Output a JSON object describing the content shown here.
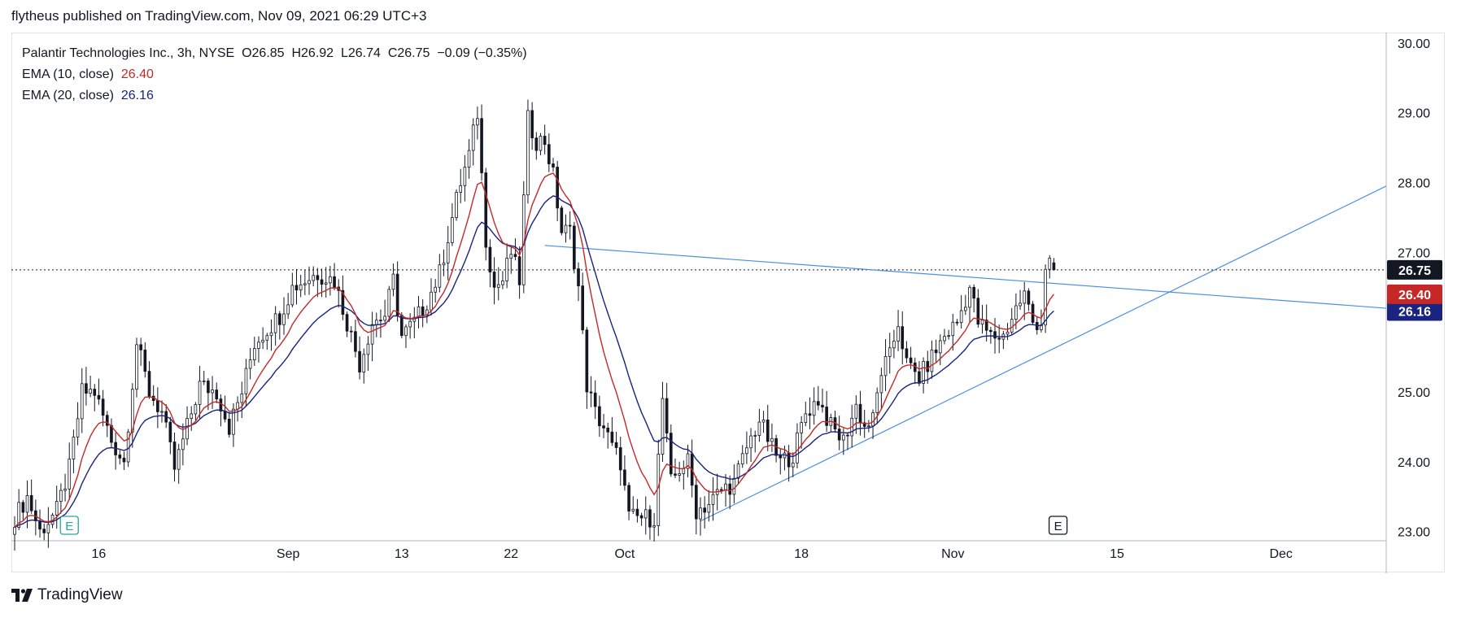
{
  "header": {
    "published": "flytheus published on TradingView.com, Nov 09, 2021 06:29 UTC+3"
  },
  "legend": {
    "symbol": "Palantir Technologies Inc., 3h, NYSE",
    "o_label": "O",
    "o": "26.85",
    "h_label": "H",
    "h": "26.92",
    "l_label": "L",
    "l": "26.74",
    "c_label": "C",
    "c": "26.75",
    "change": "−0.09 (−0.35%)",
    "ema10_label": "EMA (10, close)",
    "ema10": "26.40",
    "ema20_label": "EMA (20, close)",
    "ema20": "26.16"
  },
  "footer": {
    "brand": "TradingView"
  },
  "colors": {
    "up": "#ffffff",
    "down": "#131722",
    "ema10": "#c62828",
    "ema20": "#1a237e",
    "trend": "#4a90e2",
    "grid": "#e0e3eb",
    "earnings": "#26a69a"
  },
  "chart_data": {
    "type": "candlestick",
    "title": "Palantir Technologies Inc., 3h, NYSE",
    "ylim": [
      22.88,
      30.15
    ],
    "yticks": [
      "30.00",
      "29.00",
      "28.00",
      "27.00",
      "25.00",
      "24.00",
      "23.00"
    ],
    "y_tick_values": [
      30,
      29,
      28,
      27,
      25,
      24,
      23
    ],
    "x_index_range": [
      0,
      326
    ],
    "xticks": [
      {
        "label": "16",
        "index": 20
      },
      {
        "label": "Sep",
        "index": 65
      },
      {
        "label": "13",
        "index": 92
      },
      {
        "label": "22",
        "index": 118
      },
      {
        "label": "Oct",
        "index": 145
      },
      {
        "label": "18",
        "index": 187
      },
      {
        "label": "Nov",
        "index": 223
      },
      {
        "label": "15",
        "index": 262
      },
      {
        "label": "Dec",
        "index": 301
      }
    ],
    "price_labels": [
      {
        "label": "26.75",
        "value": 26.75,
        "color": "#131722"
      },
      {
        "label": "26.40",
        "value": 26.4,
        "color": "#c62828"
      },
      {
        "label": "26.16",
        "value": 26.16,
        "color": "#1a237e"
      }
    ],
    "current_price_line": 26.75,
    "earnings_markers": [
      {
        "label": "E",
        "index": 13,
        "style": "green"
      },
      {
        "label": "E",
        "index": 248,
        "style": "dark"
      }
    ],
    "anchors": [
      [
        0,
        23.2
      ],
      [
        3,
        23.5
      ],
      [
        6,
        23.0
      ],
      [
        10,
        23.3
      ],
      [
        13,
        23.9
      ],
      [
        16,
        25.0
      ],
      [
        19,
        25.0
      ],
      [
        23,
        24.3
      ],
      [
        26,
        24.0
      ],
      [
        29,
        25.7
      ],
      [
        32,
        25.0
      ],
      [
        35,
        24.7
      ],
      [
        38,
        23.9
      ],
      [
        41,
        24.5
      ],
      [
        44,
        25.1
      ],
      [
        48,
        25.0
      ],
      [
        51,
        24.5
      ],
      [
        54,
        25.0
      ],
      [
        57,
        25.7
      ],
      [
        60,
        25.9
      ],
      [
        63,
        26.1
      ],
      [
        66,
        26.5
      ],
      [
        69,
        26.6
      ],
      [
        72,
        26.7
      ],
      [
        76,
        26.6
      ],
      [
        79,
        26.0
      ],
      [
        82,
        25.4
      ],
      [
        85,
        26.0
      ],
      [
        88,
        26.1
      ],
      [
        90,
        26.6
      ],
      [
        92,
        25.8
      ],
      [
        95,
        26.0
      ],
      [
        98,
        26.3
      ],
      [
        101,
        26.7
      ],
      [
        104,
        27.5
      ],
      [
        106,
        28.0
      ],
      [
        108,
        28.4
      ],
      [
        110,
        29.0
      ],
      [
        112,
        27.2
      ],
      [
        114,
        26.5
      ],
      [
        116,
        26.6
      ],
      [
        118,
        27.0
      ],
      [
        120,
        26.6
      ],
      [
        122,
        28.9
      ],
      [
        124,
        28.6
      ],
      [
        126,
        28.6
      ],
      [
        128,
        28.1
      ],
      [
        130,
        27.3
      ],
      [
        132,
        27.3
      ],
      [
        134,
        26.5
      ],
      [
        136,
        25.1
      ],
      [
        138,
        24.7
      ],
      [
        140,
        24.5
      ],
      [
        142,
        24.2
      ],
      [
        144,
        24.0
      ],
      [
        146,
        23.2
      ],
      [
        149,
        23.2
      ],
      [
        152,
        23.2
      ],
      [
        154,
        24.9
      ],
      [
        156,
        23.7
      ],
      [
        158,
        23.9
      ],
      [
        160,
        24.0
      ],
      [
        162,
        23.3
      ],
      [
        165,
        23.4
      ],
      [
        168,
        23.6
      ],
      [
        171,
        23.7
      ],
      [
        174,
        24.2
      ],
      [
        177,
        24.6
      ],
      [
        180,
        24.2
      ],
      [
        182,
        24.0
      ],
      [
        185,
        24.1
      ],
      [
        188,
        24.7
      ],
      [
        191,
        24.9
      ],
      [
        194,
        24.5
      ],
      [
        197,
        24.3
      ],
      [
        200,
        24.8
      ],
      [
        202,
        24.5
      ],
      [
        204,
        24.6
      ],
      [
        206,
        25.3
      ],
      [
        208,
        25.5
      ],
      [
        210,
        26.0
      ],
      [
        212,
        25.4
      ],
      [
        215,
        25.2
      ],
      [
        218,
        25.5
      ],
      [
        221,
        25.8
      ],
      [
        224,
        26.0
      ],
      [
        227,
        26.5
      ],
      [
        229,
        26.0
      ],
      [
        232,
        25.8
      ],
      [
        235,
        25.8
      ],
      [
        238,
        26.2
      ],
      [
        240,
        26.4
      ],
      [
        242,
        26.0
      ],
      [
        244,
        26.0
      ],
      [
        245,
        26.8
      ],
      [
        246,
        26.85
      ],
      [
        247,
        26.75
      ]
    ],
    "ema10_last": 26.4,
    "ema20_last": 26.16,
    "trendlines": [
      {
        "name": "upper-trendline",
        "points": [
          [
            126,
            27.1
          ],
          [
            326,
            26.2
          ]
        ]
      },
      {
        "name": "lower-trendline",
        "points": [
          [
            163,
            23.15
          ],
          [
            326,
            27.95
          ]
        ]
      }
    ]
  }
}
